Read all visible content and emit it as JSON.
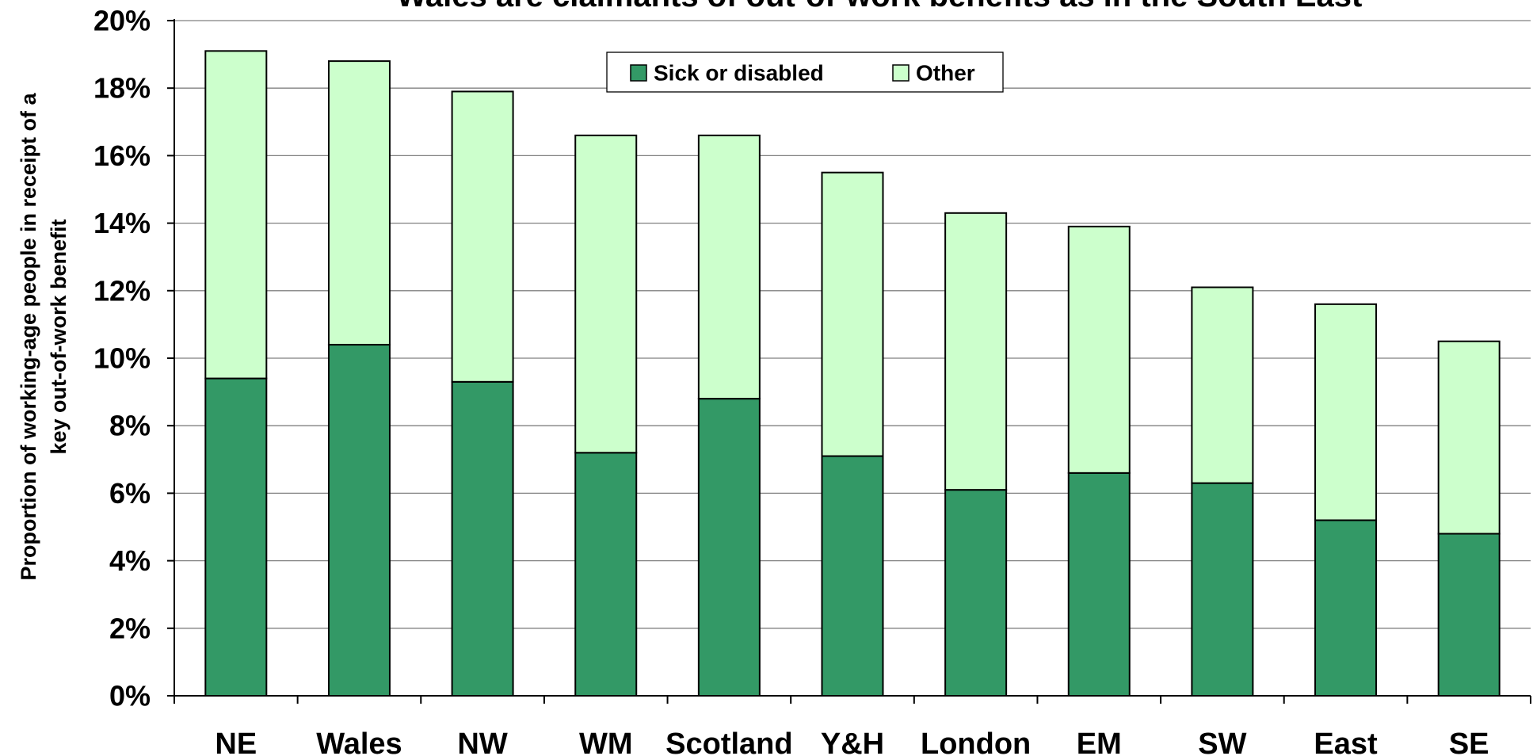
{
  "chart_data": {
    "type": "bar",
    "stacked": true,
    "title": "Wales are claimants of out-of-work benefits as in the South East",
    "ylabel_lines": [
      "Proportion of working-age people in receipt of a",
      "key out-of-work benefit"
    ],
    "xlabel": "",
    "ylim": [
      0,
      20
    ],
    "y_ticks": [
      0,
      2,
      4,
      6,
      8,
      10,
      12,
      14,
      16,
      18,
      20
    ],
    "y_tick_labels": [
      "0%",
      "2%",
      "4%",
      "6%",
      "8%",
      "10%",
      "12%",
      "14%",
      "16%",
      "18%",
      "20%"
    ],
    "grid": true,
    "legend_position": "top-center",
    "categories": [
      "NE",
      "Wales",
      "NW",
      "WM",
      "Scotland",
      "Y&H",
      "London",
      "EM",
      "SW",
      "East",
      "SE"
    ],
    "series": [
      {
        "name": "Sick or disabled",
        "color": "#339966",
        "values": [
          9.4,
          10.4,
          9.3,
          7.2,
          8.8,
          7.1,
          6.1,
          6.6,
          6.3,
          5.2,
          4.8
        ]
      },
      {
        "name": "Other",
        "color": "#CCFFCC",
        "values": [
          9.7,
          8.4,
          8.6,
          9.4,
          7.8,
          8.4,
          8.2,
          7.3,
          5.8,
          6.4,
          5.7
        ]
      }
    ]
  }
}
